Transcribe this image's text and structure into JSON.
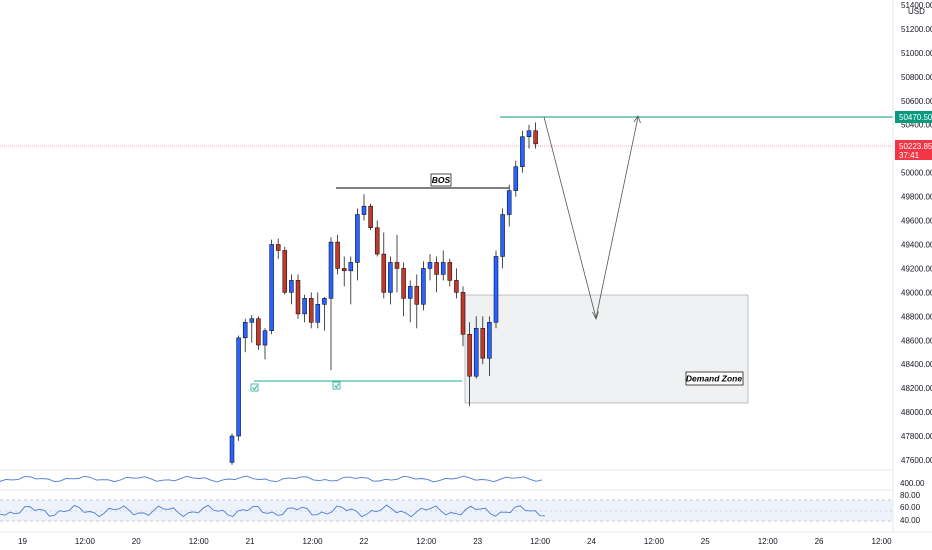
{
  "colors": {
    "up": "#2962ff",
    "down": "#c0392b",
    "wick": "#000000",
    "demand_fill": "#f0f1f2",
    "demand_border": "#9598a1",
    "resistance": "#089981",
    "last_price_line": "#f7525f",
    "support_line": "#22ab94",
    "indicator_line": "#4a7bd3"
  },
  "price_axis": {
    "currency": "USD",
    "ticks": [
      "51400.00",
      "51200.00",
      "51000.00",
      "50800.00",
      "50600.00",
      "50400.00",
      "50200.00",
      "50000.00",
      "49800.00",
      "49600.00",
      "49400.00",
      "49200.00",
      "49000.00",
      "48800.00",
      "48600.00",
      "48400.00",
      "48200.00",
      "48000.00",
      "47800.00",
      "47600.00"
    ],
    "resistance_label": "50470.50",
    "last_price_label": "50223.85",
    "countdown_label": "37:41"
  },
  "indicator": {
    "upper_label": "400.00",
    "rsi_labels": [
      "80.00",
      "60.00",
      "40.00"
    ]
  },
  "time_axis": {
    "labels": [
      "19",
      "12:00",
      "20",
      "12:00",
      "21",
      "12:00",
      "22",
      "12:00",
      "23",
      "12:00",
      "24",
      "12:00",
      "25",
      "12:00",
      "26",
      "12:00"
    ]
  },
  "annotations": {
    "bos": "BOS",
    "demand_zone": "Demand Zone"
  },
  "chart_data": {
    "type": "candlestick",
    "y_unit": "USD",
    "ylim": [
      47500,
      51500
    ],
    "candles": [
      [
        47580,
        47820,
        47560,
        47800
      ],
      [
        47800,
        48640,
        47760,
        48620
      ],
      [
        48620,
        48780,
        48500,
        48750
      ],
      [
        48750,
        48810,
        48580,
        48780
      ],
      [
        48780,
        48800,
        48520,
        48560
      ],
      [
        48560,
        48700,
        48440,
        48680
      ],
      [
        48680,
        49440,
        48650,
        49400
      ],
      [
        49400,
        49450,
        49280,
        49350
      ],
      [
        49350,
        49380,
        48980,
        49000
      ],
      [
        49000,
        49150,
        48900,
        49100
      ],
      [
        49100,
        49150,
        48780,
        48820
      ],
      [
        48820,
        48980,
        48750,
        48950
      ],
      [
        48950,
        49000,
        48700,
        48750
      ],
      [
        48750,
        49000,
        48700,
        48900
      ],
      [
        48900,
        48960,
        48680,
        48950
      ],
      [
        48950,
        49460,
        48350,
        49420
      ],
      [
        49420,
        49480,
        49150,
        49200
      ],
      [
        49200,
        49300,
        49050,
        49180
      ],
      [
        49180,
        49300,
        48900,
        49250
      ],
      [
        49250,
        49700,
        49100,
        49650
      ],
      [
        49650,
        49820,
        49600,
        49720
      ],
      [
        49720,
        49740,
        49520,
        49540
      ],
      [
        49540,
        49600,
        49300,
        49320
      ],
      [
        49320,
        49500,
        48950,
        49000
      ],
      [
        49000,
        49300,
        48900,
        49250
      ],
      [
        49250,
        49480,
        49000,
        49200
      ],
      [
        49200,
        49250,
        48800,
        48950
      ],
      [
        48950,
        49100,
        48750,
        49050
      ],
      [
        49050,
        49150,
        48700,
        48900
      ],
      [
        48900,
        49260,
        48850,
        49200
      ],
      [
        49200,
        49320,
        49100,
        49250
      ],
      [
        49250,
        49300,
        49000,
        49150
      ],
      [
        49150,
        49350,
        49100,
        49250
      ],
      [
        49250,
        49280,
        49050,
        49100
      ],
      [
        49100,
        49200,
        48950,
        49000
      ],
      [
        49000,
        49050,
        48550,
        48650
      ],
      [
        48650,
        48750,
        48050,
        48300
      ],
      [
        48300,
        48800,
        48280,
        48700
      ],
      [
        48700,
        48800,
        48400,
        48450
      ],
      [
        48450,
        48800,
        48300,
        48750
      ],
      [
        48750,
        49350,
        48700,
        49300
      ],
      [
        49300,
        49700,
        49200,
        49650
      ],
      [
        49650,
        49900,
        49550,
        49850
      ],
      [
        49850,
        50100,
        49800,
        50050
      ],
      [
        50050,
        50350,
        50000,
        50300
      ],
      [
        50300,
        50400,
        50200,
        50350
      ],
      [
        50350,
        50420,
        50200,
        50240
      ]
    ],
    "levels": {
      "resistance": 50470.5,
      "last_price": 50223.85,
      "bos": 49880,
      "support": 48380
    },
    "demand_zone": {
      "from_price": 48000,
      "to_price": 48980
    },
    "projection_path": [
      [
        50500,
        "now"
      ],
      [
        48780,
        "24 00:00"
      ],
      [
        50470.5,
        "24 12:00"
      ]
    ]
  }
}
